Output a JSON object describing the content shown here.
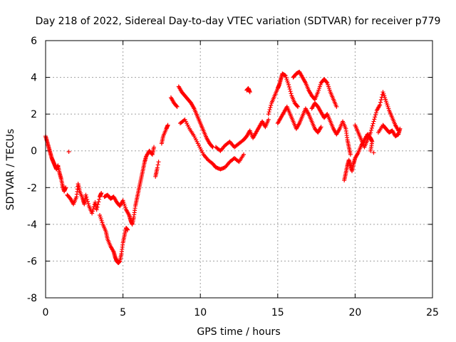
{
  "chart_data": {
    "type": "scatter",
    "title": "Day 218 of 2022, Sidereal Day-to-day VTEC variation (SDTVAR) for receiver p779",
    "xlabel": "GPS time / hours",
    "ylabel": "SDTVAR / TECUs",
    "xlim": [
      0,
      25
    ],
    "ylim": [
      -8,
      6
    ],
    "xticks": [
      0,
      5,
      10,
      15,
      20,
      25
    ],
    "yticks": [
      -8,
      -6,
      -4,
      -2,
      0,
      2,
      4,
      6
    ],
    "grid": true,
    "marker": "+",
    "color": "#ff0000",
    "series": [
      {
        "name": "p779",
        "points": [
          [
            0.0,
            0.8
          ],
          [
            0.1,
            0.5
          ],
          [
            0.2,
            0.2
          ],
          [
            0.3,
            -0.1
          ],
          [
            0.4,
            -0.4
          ],
          [
            0.5,
            -0.6
          ],
          [
            0.6,
            -0.8
          ],
          [
            0.7,
            -1.0
          ],
          [
            0.8,
            -0.8
          ],
          [
            0.9,
            -1.2
          ],
          [
            1.0,
            -1.5
          ],
          [
            1.1,
            -1.9
          ],
          [
            1.2,
            -2.2
          ],
          [
            1.3,
            -2.0
          ],
          [
            1.5,
            -0.05
          ],
          [
            1.4,
            -2.4
          ],
          [
            1.6,
            -2.6
          ],
          [
            1.8,
            -2.9
          ],
          [
            2.0,
            -2.5
          ],
          [
            2.1,
            -1.8
          ],
          [
            2.2,
            -2.2
          ],
          [
            2.4,
            -2.6
          ],
          [
            2.5,
            -2.9
          ],
          [
            2.6,
            -2.4
          ],
          [
            2.8,
            -3.0
          ],
          [
            3.0,
            -3.4
          ],
          [
            3.2,
            -2.8
          ],
          [
            3.3,
            -3.2
          ],
          [
            3.5,
            -2.5
          ],
          [
            3.6,
            -2.3
          ],
          [
            3.5,
            -3.5
          ],
          [
            3.7,
            -4.0
          ],
          [
            3.9,
            -4.4
          ],
          [
            4.0,
            -4.8
          ],
          [
            4.2,
            -5.2
          ],
          [
            4.4,
            -5.5
          ],
          [
            4.5,
            -5.8
          ],
          [
            4.6,
            -6.0
          ],
          [
            4.7,
            -6.1
          ],
          [
            4.8,
            -6.0
          ],
          [
            4.9,
            -5.6
          ],
          [
            5.0,
            -5.0
          ],
          [
            5.1,
            -4.6
          ],
          [
            5.2,
            -4.2
          ],
          [
            5.3,
            -4.3
          ],
          [
            3.8,
            -2.5
          ],
          [
            4.0,
            -2.4
          ],
          [
            4.2,
            -2.6
          ],
          [
            4.4,
            -2.5
          ],
          [
            4.6,
            -2.8
          ],
          [
            4.8,
            -3.0
          ],
          [
            5.0,
            -2.7
          ],
          [
            5.2,
            -3.2
          ],
          [
            5.4,
            -3.5
          ],
          [
            5.5,
            -3.8
          ],
          [
            5.6,
            -4.0
          ],
          [
            5.7,
            -3.6
          ],
          [
            5.8,
            -3.0
          ],
          [
            5.9,
            -2.6
          ],
          [
            6.0,
            -2.2
          ],
          [
            6.1,
            -1.8
          ],
          [
            6.2,
            -1.4
          ],
          [
            6.3,
            -1.0
          ],
          [
            6.4,
            -0.6
          ],
          [
            6.5,
            -0.3
          ],
          [
            6.7,
            0.0
          ],
          [
            6.9,
            -0.2
          ],
          [
            7.0,
            0.2
          ],
          [
            7.2,
            -1.0
          ],
          [
            7.1,
            -1.4
          ],
          [
            7.3,
            -0.6
          ],
          [
            7.5,
            0.4
          ],
          [
            7.6,
            0.8
          ],
          [
            7.8,
            1.2
          ],
          [
            7.9,
            1.4
          ],
          [
            8.1,
            2.9
          ],
          [
            8.3,
            2.6
          ],
          [
            8.5,
            2.4
          ],
          [
            8.6,
            3.5
          ],
          [
            8.8,
            3.2
          ],
          [
            9.0,
            3.0
          ],
          [
            9.2,
            2.8
          ],
          [
            9.4,
            2.6
          ],
          [
            9.6,
            2.3
          ],
          [
            9.8,
            1.9
          ],
          [
            10.0,
            1.5
          ],
          [
            10.2,
            1.1
          ],
          [
            10.4,
            0.7
          ],
          [
            10.6,
            0.4
          ],
          [
            10.8,
            0.2
          ],
          [
            8.7,
            1.5
          ],
          [
            9.0,
            1.7
          ],
          [
            9.3,
            1.2
          ],
          [
            9.6,
            0.8
          ],
          [
            9.9,
            0.3
          ],
          [
            10.2,
            -0.2
          ],
          [
            10.5,
            -0.5
          ],
          [
            10.8,
            -0.7
          ],
          [
            11.0,
            -0.9
          ],
          [
            11.3,
            -1.0
          ],
          [
            11.6,
            -0.9
          ],
          [
            11.9,
            -0.6
          ],
          [
            12.2,
            -0.4
          ],
          [
            12.5,
            -0.6
          ],
          [
            12.8,
            -0.2
          ],
          [
            11.0,
            0.2
          ],
          [
            11.3,
            0.0
          ],
          [
            11.6,
            0.3
          ],
          [
            11.9,
            0.5
          ],
          [
            12.2,
            0.2
          ],
          [
            12.5,
            0.4
          ],
          [
            12.8,
            0.6
          ],
          [
            13.0,
            0.8
          ],
          [
            13.2,
            1.1
          ],
          [
            13.4,
            0.7
          ],
          [
            13.6,
            1.0
          ],
          [
            13.8,
            1.3
          ],
          [
            14.0,
            1.6
          ],
          [
            14.2,
            1.3
          ],
          [
            14.4,
            1.7
          ],
          [
            13.0,
            3.3
          ],
          [
            13.1,
            3.4
          ],
          [
            13.2,
            3.2
          ],
          [
            14.4,
            2.0
          ],
          [
            14.6,
            2.6
          ],
          [
            14.8,
            3.0
          ],
          [
            15.0,
            3.4
          ],
          [
            15.1,
            3.6
          ],
          [
            15.2,
            3.9
          ],
          [
            15.3,
            4.2
          ],
          [
            15.5,
            4.1
          ],
          [
            15.7,
            3.6
          ],
          [
            15.9,
            3.0
          ],
          [
            16.1,
            2.6
          ],
          [
            16.3,
            2.4
          ],
          [
            15.0,
            1.5
          ],
          [
            15.2,
            1.8
          ],
          [
            15.4,
            2.1
          ],
          [
            15.6,
            2.4
          ],
          [
            15.8,
            2.0
          ],
          [
            16.0,
            1.6
          ],
          [
            16.2,
            1.2
          ],
          [
            16.4,
            1.5
          ],
          [
            16.6,
            1.9
          ],
          [
            16.8,
            2.3
          ],
          [
            17.0,
            2.0
          ],
          [
            17.2,
            1.6
          ],
          [
            17.4,
            1.2
          ],
          [
            17.6,
            1.0
          ],
          [
            17.8,
            1.3
          ],
          [
            16.0,
            4.0
          ],
          [
            16.2,
            4.2
          ],
          [
            16.4,
            4.3
          ],
          [
            16.6,
            4.0
          ],
          [
            16.8,
            3.7
          ],
          [
            17.0,
            3.3
          ],
          [
            17.2,
            3.0
          ],
          [
            17.4,
            2.8
          ],
          [
            17.6,
            3.2
          ],
          [
            17.8,
            3.7
          ],
          [
            18.0,
            3.9
          ],
          [
            18.2,
            3.7
          ],
          [
            18.4,
            3.2
          ],
          [
            18.6,
            2.8
          ],
          [
            18.8,
            2.4
          ],
          [
            17.2,
            2.3
          ],
          [
            17.4,
            2.6
          ],
          [
            17.6,
            2.4
          ],
          [
            17.8,
            2.1
          ],
          [
            18.0,
            1.8
          ],
          [
            18.2,
            2.0
          ],
          [
            18.4,
            1.6
          ],
          [
            18.6,
            1.2
          ],
          [
            18.8,
            0.9
          ],
          [
            19.0,
            1.2
          ],
          [
            19.2,
            1.6
          ],
          [
            19.4,
            1.2
          ],
          [
            19.5,
            0.6
          ],
          [
            19.6,
            0.2
          ],
          [
            19.7,
            -0.2
          ],
          [
            19.3,
            -1.6
          ],
          [
            19.4,
            -1.2
          ],
          [
            19.5,
            -0.8
          ],
          [
            19.6,
            -0.5
          ],
          [
            19.7,
            -0.8
          ],
          [
            19.8,
            -1.1
          ],
          [
            19.9,
            -0.7
          ],
          [
            20.0,
            -0.4
          ],
          [
            20.2,
            -0.1
          ],
          [
            20.4,
            0.3
          ],
          [
            20.6,
            0.6
          ],
          [
            20.8,
            0.9
          ],
          [
            21.0,
            0.7
          ],
          [
            21.1,
            0.5
          ],
          [
            21.0,
            0.0
          ],
          [
            20.0,
            1.4
          ],
          [
            20.2,
            1.0
          ],
          [
            20.4,
            0.6
          ],
          [
            20.6,
            0.2
          ],
          [
            20.8,
            0.6
          ],
          [
            21.0,
            1.0
          ],
          [
            21.2,
            1.6
          ],
          [
            21.4,
            2.2
          ],
          [
            21.6,
            2.5
          ],
          [
            21.8,
            3.2
          ],
          [
            22.0,
            2.7
          ],
          [
            22.2,
            2.2
          ],
          [
            22.4,
            1.8
          ],
          [
            22.6,
            1.4
          ],
          [
            22.8,
            1.1
          ],
          [
            21.2,
            -0.1
          ],
          [
            21.5,
            1.0
          ],
          [
            21.8,
            1.4
          ],
          [
            22.0,
            1.2
          ],
          [
            22.2,
            1.0
          ],
          [
            22.4,
            1.1
          ],
          [
            22.6,
            0.8
          ],
          [
            22.8,
            0.9
          ],
          [
            22.9,
            1.2
          ]
        ]
      }
    ]
  }
}
